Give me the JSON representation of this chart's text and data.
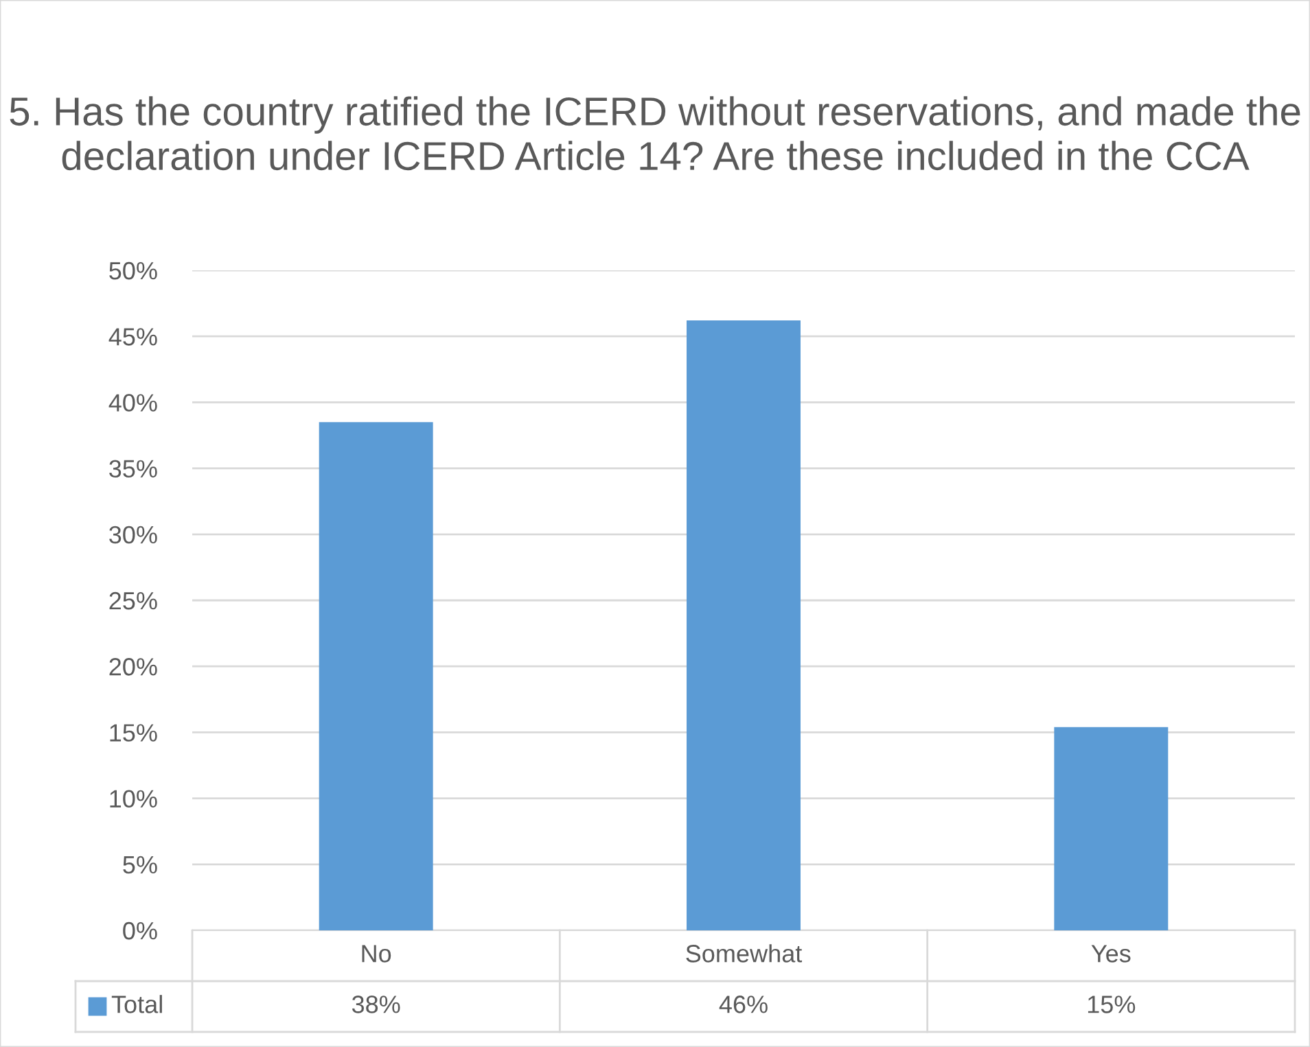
{
  "chart_data": {
    "type": "bar",
    "title": "5. Has the country ratified the ICERD without reservations, and made the declaration under ICERD Article 14? Are these included in the CCA",
    "categories": [
      "No",
      "Somewhat",
      "Yes"
    ],
    "series": [
      {
        "name": "Total",
        "color": "#5b9bd5",
        "values": [
          38.5,
          46.2,
          15.4
        ],
        "value_labels": [
          "38%",
          "46%",
          "15%"
        ]
      }
    ],
    "ylim": [
      0,
      50
    ],
    "yticks": [
      {
        "value": 0,
        "label": "0%"
      },
      {
        "value": 5,
        "label": "5%"
      },
      {
        "value": 10,
        "label": "10%"
      },
      {
        "value": 15,
        "label": "15%"
      },
      {
        "value": 20,
        "label": "20%"
      },
      {
        "value": 25,
        "label": "25%"
      },
      {
        "value": 30,
        "label": "30%"
      },
      {
        "value": 35,
        "label": "35%"
      },
      {
        "value": 40,
        "label": "40%"
      },
      {
        "value": 45,
        "label": "45%"
      },
      {
        "value": 50,
        "label": "50%"
      }
    ],
    "grid": "y",
    "legend": "bottom"
  }
}
